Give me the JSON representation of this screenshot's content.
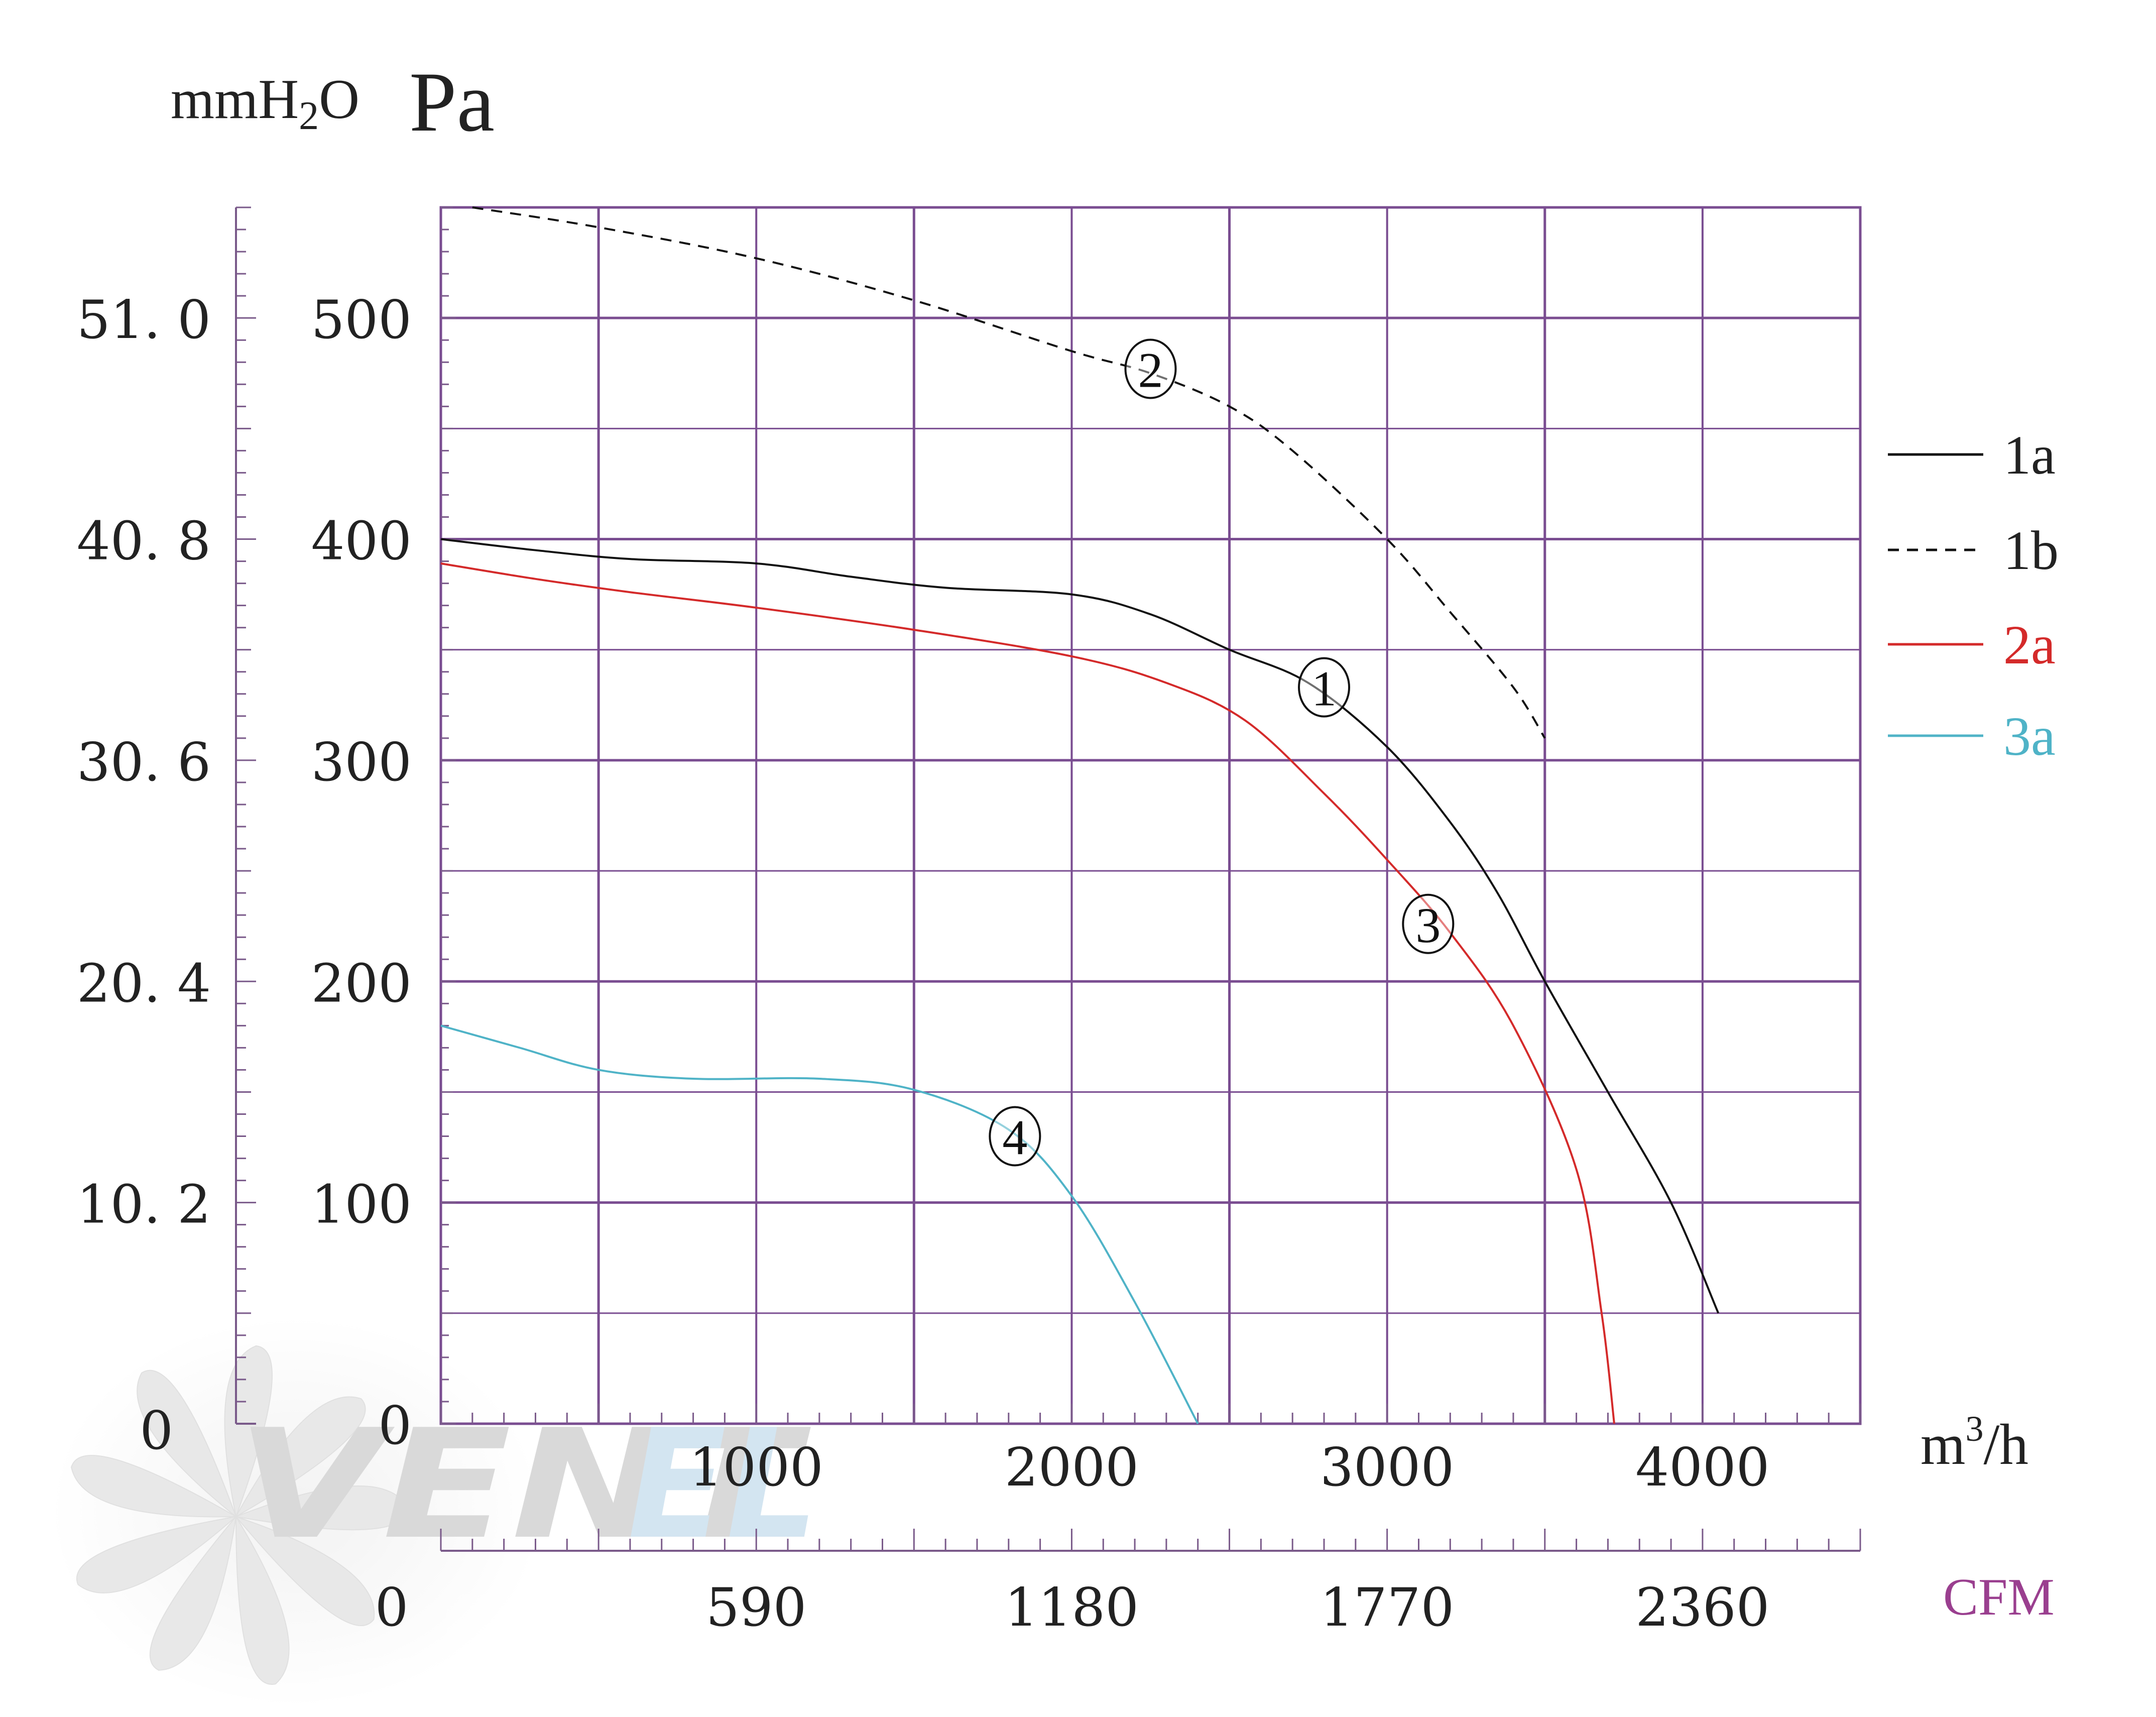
{
  "chart_data": {
    "type": "line",
    "y_unit_left": "mmH",
    "y_unit_left_sub": "2",
    "y_unit_left_tail": "O",
    "y_unit_right": "Pa",
    "x_unit_main": "m",
    "x_unit_main_sup": "3",
    "x_unit_main_tail": "/h",
    "x_unit_secondary": "CFM",
    "xlim": [
      0,
      4500
    ],
    "ylim": [
      0,
      550
    ],
    "pa_ticks": [
      {
        "value": 0,
        "label": "0"
      },
      {
        "value": 100,
        "label": "100"
      },
      {
        "value": 200,
        "label": "200"
      },
      {
        "value": 300,
        "label": "300"
      },
      {
        "value": 400,
        "label": "400"
      },
      {
        "value": 500,
        "label": "500"
      }
    ],
    "mmh2o_ticks": [
      {
        "value": 0,
        "label": "0"
      },
      {
        "value": 100,
        "label": "10. 2"
      },
      {
        "value": 200,
        "label": "20. 4"
      },
      {
        "value": 300,
        "label": "30. 6"
      },
      {
        "value": 400,
        "label": "40. 8"
      },
      {
        "value": 500,
        "label": "51. 0"
      }
    ],
    "x_ticks": [
      {
        "value": 1000,
        "label": "1000"
      },
      {
        "value": 2000,
        "label": "2000"
      },
      {
        "value": 3000,
        "label": "3000"
      },
      {
        "value": 4000,
        "label": "4000"
      }
    ],
    "cfm_ticks": [
      {
        "value": 0,
        "label": "0"
      },
      {
        "value": 1000,
        "label": "590"
      },
      {
        "value": 2000,
        "label": "1180"
      },
      {
        "value": 3000,
        "label": "1770"
      },
      {
        "value": 4000,
        "label": "2360"
      }
    ],
    "grid": true,
    "legend": "right",
    "series": [
      {
        "name": "1a",
        "color": "#111111",
        "dash": "solid",
        "marker_label": "1",
        "marker_at": [
          2800,
          333
        ],
        "points": [
          [
            0,
            400
          ],
          [
            300,
            395
          ],
          [
            600,
            391
          ],
          [
            1000,
            389
          ],
          [
            1300,
            383
          ],
          [
            1600,
            378
          ],
          [
            2000,
            375
          ],
          [
            2250,
            366
          ],
          [
            2500,
            350
          ],
          [
            2750,
            335
          ],
          [
            3000,
            306
          ],
          [
            3200,
            272
          ],
          [
            3350,
            240
          ],
          [
            3500,
            200
          ],
          [
            3700,
            150
          ],
          [
            3900,
            100
          ],
          [
            4050,
            50
          ]
        ]
      },
      {
        "name": "1b",
        "color": "#111111",
        "dash": "dashed",
        "marker_label": "2",
        "marker_at": [
          2250,
          477
        ],
        "points": [
          [
            100,
            550
          ],
          [
            500,
            541
          ],
          [
            1000,
            527
          ],
          [
            1500,
            508
          ],
          [
            2000,
            485
          ],
          [
            2250,
            475
          ],
          [
            2500,
            460
          ],
          [
            2700,
            440
          ],
          [
            3000,
            400
          ],
          [
            3200,
            367
          ],
          [
            3400,
            333
          ],
          [
            3500,
            310
          ]
        ]
      },
      {
        "name": "2a",
        "color": "#d42a2a",
        "dash": "solid",
        "marker_label": "3",
        "marker_at": [
          3130,
          226
        ],
        "points": [
          [
            0,
            389
          ],
          [
            300,
            382
          ],
          [
            600,
            376
          ],
          [
            1000,
            369
          ],
          [
            1500,
            359
          ],
          [
            2000,
            347
          ],
          [
            2300,
            335
          ],
          [
            2550,
            318
          ],
          [
            2800,
            285
          ],
          [
            3000,
            255
          ],
          [
            3200,
            222
          ],
          [
            3400,
            180
          ],
          [
            3600,
            115
          ],
          [
            3680,
            50
          ],
          [
            3720,
            0
          ]
        ]
      },
      {
        "name": "3a",
        "color": "#4fb3c7",
        "dash": "solid",
        "marker_label": "4",
        "marker_at": [
          1820,
          130
        ],
        "points": [
          [
            0,
            180
          ],
          [
            250,
            170
          ],
          [
            500,
            160
          ],
          [
            800,
            156
          ],
          [
            1200,
            156
          ],
          [
            1500,
            151
          ],
          [
            1800,
            133
          ],
          [
            2000,
            103
          ],
          [
            2200,
            55
          ],
          [
            2400,
            0
          ]
        ]
      }
    ]
  }
}
